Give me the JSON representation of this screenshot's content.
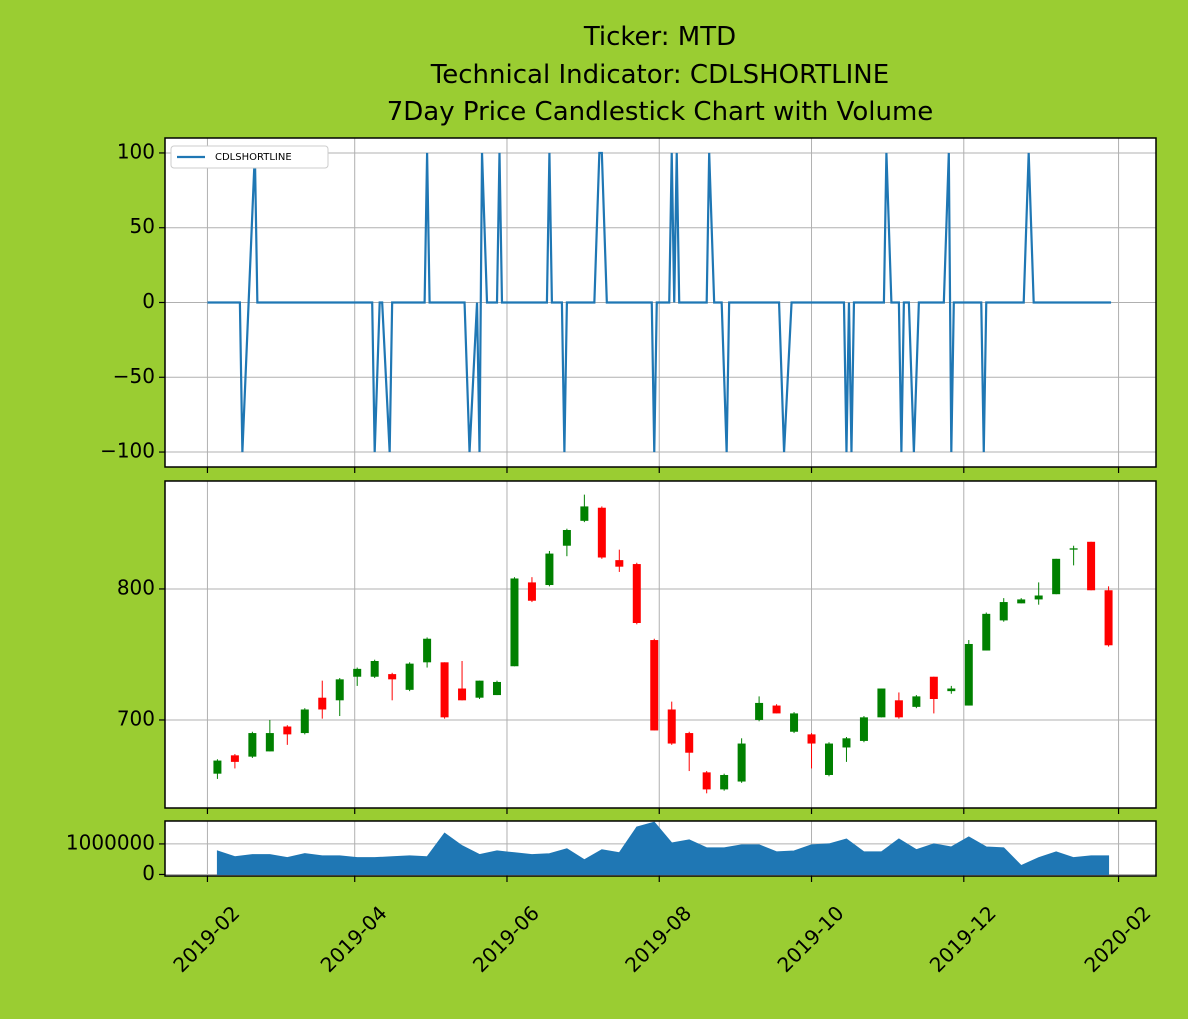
{
  "chart_data": [
    {
      "type": "line",
      "title": [
        "Ticker: MTD",
        "Technical Indicator: CDLSHORTLINE",
        "7Day Price Candlestick Chart with Volume"
      ],
      "x": [
        737091,
        737104,
        737105,
        737110,
        737111,
        737157,
        737158,
        737160,
        737161,
        737164,
        737165,
        737178,
        737179,
        737180,
        737194,
        737196,
        737199,
        737200,
        737201,
        737203,
        737207,
        737208,
        737209,
        737227,
        737228,
        737229,
        737233,
        737234,
        737235,
        737246,
        737248,
        737249,
        737251,
        737269,
        737270,
        737271,
        737276,
        737277,
        737278,
        737279,
        737280,
        737291,
        737292,
        737294,
        737297,
        737299,
        737300,
        737320,
        737322,
        737325,
        737346,
        737347,
        737348,
        737349,
        737350,
        737362,
        737363,
        737365,
        737368,
        737369,
        737370,
        737372,
        737374,
        737376,
        737386,
        737388,
        737389,
        737390,
        737401,
        737402,
        737403,
        737418,
        737420,
        737422,
        737453
      ],
      "series": [
        {
          "name": "CDLSHORTLINE",
          "color": "#1f77b4",
          "values": [
            0,
            0,
            -100,
            100,
            0,
            0,
            -100,
            0,
            0,
            -100,
            0,
            0,
            100,
            0,
            0,
            -100,
            0,
            -100,
            100,
            0,
            0,
            100,
            0,
            0,
            100,
            0,
            0,
            -100,
            0,
            0,
            100,
            100,
            0,
            0,
            -100,
            0,
            0,
            100,
            0,
            100,
            0,
            0,
            100,
            0,
            0,
            -100,
            0,
            0,
            -100,
            0,
            0,
            -100,
            0,
            -100,
            0,
            0,
            100,
            0,
            0,
            -100,
            0,
            0,
            -100,
            0,
            0,
            100,
            -100,
            0,
            0,
            -100,
            0,
            0,
            100,
            0,
            0
          ]
        }
      ],
      "ylim": [
        -110,
        110
      ],
      "yticks": [
        {
          "value": -100,
          "label": "−100"
        },
        {
          "value": -50,
          "label": "−50"
        },
        0,
        50,
        100
      ],
      "grid": true,
      "legend": "upper left"
    },
    {
      "type": "candlestick",
      "x": [
        737095,
        737102,
        737109,
        737116,
        737123,
        737130,
        737137,
        737144,
        737151,
        737158,
        737165,
        737172,
        737179,
        737186,
        737193,
        737200,
        737207,
        737214,
        737221,
        737228,
        737235,
        737242,
        737249,
        737256,
        737263,
        737270,
        737277,
        737284,
        737291,
        737298,
        737305,
        737312,
        737319,
        737326,
        737333,
        737340,
        737347,
        737354,
        737361,
        737368,
        737375,
        737382,
        737389,
        737396,
        737403,
        737410,
        737417,
        737424,
        737431,
        737438,
        737445,
        737452
      ],
      "open": [
        659,
        673,
        672,
        676,
        695,
        690,
        717,
        715,
        733,
        733,
        735,
        723,
        744,
        744,
        724,
        717,
        719,
        741,
        805,
        803,
        833,
        852,
        862,
        822,
        819,
        761,
        708,
        690,
        660,
        647,
        653,
        700,
        711,
        691,
        689,
        658,
        679,
        684,
        702,
        715,
        710,
        733,
        722,
        711,
        753,
        776,
        789,
        792,
        796,
        830,
        836,
        799
      ],
      "high": [
        670,
        674,
        691,
        700,
        696,
        709,
        730,
        732,
        740,
        746,
        736,
        744,
        763,
        744,
        745,
        730,
        730,
        809,
        809,
        829,
        846,
        872,
        863,
        830,
        820,
        762,
        714,
        691,
        661,
        659,
        686,
        718,
        712,
        706,
        690,
        683,
        687,
        703,
        724,
        721,
        719,
        733,
        726,
        761,
        782,
        793,
        793,
        805,
        823,
        833,
        836,
        802
      ],
      "low": [
        655,
        663,
        671,
        676,
        681,
        689,
        701,
        703,
        726,
        732,
        715,
        722,
        740,
        701,
        715,
        716,
        719,
        741,
        790,
        802,
        825,
        851,
        823,
        813,
        773,
        692,
        681,
        661,
        644,
        646,
        652,
        699,
        705,
        690,
        663,
        657,
        668,
        683,
        702,
        701,
        709,
        705,
        720,
        711,
        753,
        775,
        789,
        788,
        796,
        818,
        799,
        756
      ],
      "close": [
        669,
        668,
        690,
        690,
        689,
        708,
        708,
        731,
        739,
        745,
        731,
        743,
        762,
        702,
        715,
        730,
        729,
        808,
        791,
        827,
        845,
        863,
        824,
        817,
        774,
        692,
        682,
        675,
        647,
        658,
        682,
        713,
        705,
        705,
        682,
        682,
        686,
        702,
        724,
        702,
        718,
        716,
        724,
        758,
        781,
        790,
        792,
        795,
        823,
        831,
        799,
        757
      ],
      "up_color": "#008000",
      "down_color": "#ff0000",
      "ylim": [
        632.8,
        882.4
      ],
      "yticks": [
        700,
        800
      ],
      "grid": true
    },
    {
      "type": "area",
      "x": [
        737095,
        737102,
        737109,
        737116,
        737123,
        737130,
        737137,
        737144,
        737151,
        737158,
        737165,
        737172,
        737179,
        737186,
        737193,
        737200,
        737207,
        737214,
        737221,
        737228,
        737235,
        737242,
        737249,
        737256,
        737263,
        737270,
        737277,
        737284,
        737291,
        737298,
        737305,
        737312,
        737319,
        737326,
        737333,
        737340,
        737347,
        737354,
        737361,
        737368,
        737375,
        737382,
        737389,
        737396,
        737403,
        737410,
        737417,
        737424,
        737431,
        737438,
        737445,
        737452
      ],
      "values": [
        770000,
        580000,
        650000,
        650000,
        550000,
        680000,
        610000,
        610000,
        550000,
        550000,
        580000,
        610000,
        580000,
        1350000,
        940000,
        650000,
        770000,
        710000,
        650000,
        680000,
        840000,
        480000,
        810000,
        710000,
        1550000,
        1710000,
        1030000,
        1130000,
        870000,
        870000,
        970000,
        970000,
        740000,
        770000,
        970000,
        1000000,
        1160000,
        740000,
        740000,
        1160000,
        810000,
        1000000,
        900000,
        1230000,
        900000,
        870000,
        290000,
        550000,
        740000,
        550000,
        610000,
        610000
      ],
      "color": "#1f77b4",
      "ylim": [
        -50000,
        1750000
      ],
      "yticks": [
        0,
        1000000
      ],
      "xlim": [
        737074,
        737471
      ],
      "xticks": [
        {
          "value": 737091,
          "label": "2019-02"
        },
        {
          "value": 737150,
          "label": "2019-04"
        },
        {
          "value": 737211,
          "label": "2019-06"
        },
        {
          "value": 737272,
          "label": "2019-08"
        },
        {
          "value": 737333,
          "label": "2019-10"
        },
        {
          "value": 737394,
          "label": "2019-12"
        },
        {
          "value": 737456,
          "label": "2020-02"
        }
      ],
      "grid": true
    }
  ]
}
